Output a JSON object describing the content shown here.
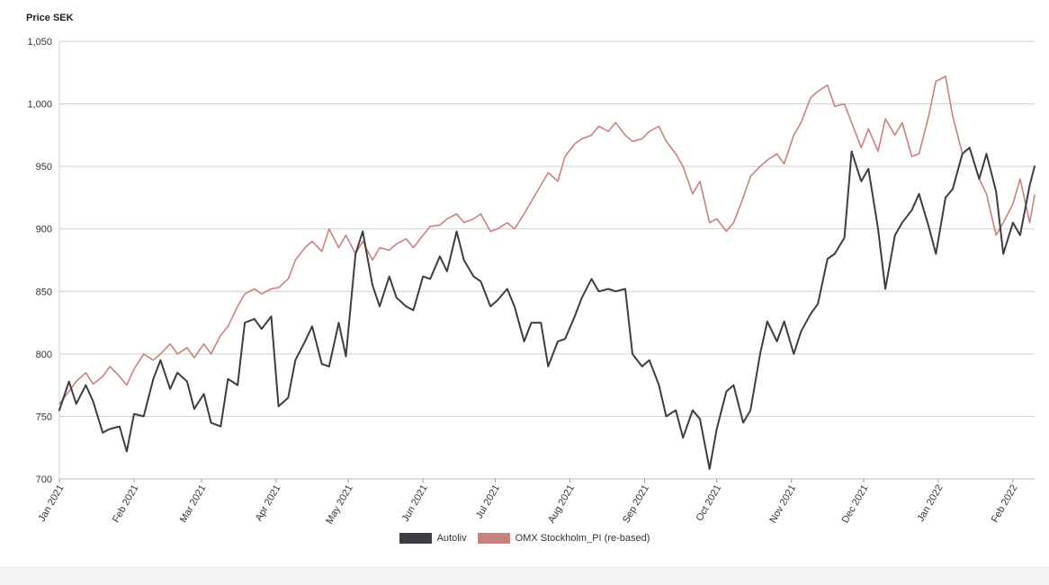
{
  "chart_data": {
    "type": "line",
    "ylabel": "Price SEK",
    "ylim": [
      700,
      1050
    ],
    "yticks": [
      700,
      750,
      800,
      850,
      900,
      950,
      1000,
      1050
    ],
    "ytick_labels": [
      "700",
      "750",
      "800",
      "850",
      "900",
      "950",
      "1,000",
      "1,050"
    ],
    "xlim": [
      "2021-01-01",
      "2022-02-10"
    ],
    "xticks": [
      "2021-01-01",
      "2021-02-01",
      "2021-03-01",
      "2021-04-01",
      "2021-05-01",
      "2021-06-01",
      "2021-07-01",
      "2021-08-01",
      "2021-09-01",
      "2021-10-01",
      "2021-11-01",
      "2021-12-01",
      "2022-01-01",
      "2022-02-01"
    ],
    "xtick_labels": [
      "Jan 2021",
      "Feb 2021",
      "Mar 2021",
      "Apr 2021",
      "May 2021",
      "Jun 2021",
      "Jul 2021",
      "Aug 2021",
      "Sep 2021",
      "Oct 2021",
      "Nov 2021",
      "Dec 2021",
      "Jan 2022",
      "Feb 2022"
    ],
    "grid": true,
    "legend_position": "bottom",
    "series": [
      {
        "name": "Autoliv",
        "color": "#3d3d42",
        "points": [
          [
            "2021-01-01",
            755
          ],
          [
            "2021-01-05",
            778
          ],
          [
            "2021-01-08",
            760
          ],
          [
            "2021-01-12",
            775
          ],
          [
            "2021-01-15",
            762
          ],
          [
            "2021-01-19",
            737
          ],
          [
            "2021-01-22",
            740
          ],
          [
            "2021-01-26",
            742
          ],
          [
            "2021-01-29",
            722
          ],
          [
            "2021-02-01",
            752
          ],
          [
            "2021-02-05",
            750
          ],
          [
            "2021-02-09",
            780
          ],
          [
            "2021-02-12",
            795
          ],
          [
            "2021-02-16",
            772
          ],
          [
            "2021-02-19",
            785
          ],
          [
            "2021-02-23",
            778
          ],
          [
            "2021-02-26",
            756
          ],
          [
            "2021-03-02",
            768
          ],
          [
            "2021-03-05",
            745
          ],
          [
            "2021-03-09",
            742
          ],
          [
            "2021-03-12",
            780
          ],
          [
            "2021-03-16",
            775
          ],
          [
            "2021-03-19",
            825
          ],
          [
            "2021-03-23",
            828
          ],
          [
            "2021-03-26",
            820
          ],
          [
            "2021-03-30",
            830
          ],
          [
            "2021-04-02",
            758
          ],
          [
            "2021-04-06",
            765
          ],
          [
            "2021-04-09",
            795
          ],
          [
            "2021-04-13",
            810
          ],
          [
            "2021-04-16",
            822
          ],
          [
            "2021-04-20",
            792
          ],
          [
            "2021-04-23",
            790
          ],
          [
            "2021-04-27",
            825
          ],
          [
            "2021-04-30",
            798
          ],
          [
            "2021-05-04",
            880
          ],
          [
            "2021-05-07",
            898
          ],
          [
            "2021-05-11",
            855
          ],
          [
            "2021-05-14",
            838
          ],
          [
            "2021-05-18",
            862
          ],
          [
            "2021-05-21",
            845
          ],
          [
            "2021-05-25",
            838
          ],
          [
            "2021-05-28",
            835
          ],
          [
            "2021-06-01",
            862
          ],
          [
            "2021-06-04",
            860
          ],
          [
            "2021-06-08",
            878
          ],
          [
            "2021-06-11",
            866
          ],
          [
            "2021-06-15",
            898
          ],
          [
            "2021-06-18",
            875
          ],
          [
            "2021-06-22",
            862
          ],
          [
            "2021-06-25",
            858
          ],
          [
            "2021-06-29",
            838
          ],
          [
            "2021-07-02",
            843
          ],
          [
            "2021-07-06",
            852
          ],
          [
            "2021-07-09",
            838
          ],
          [
            "2021-07-13",
            810
          ],
          [
            "2021-07-16",
            825
          ],
          [
            "2021-07-20",
            825
          ],
          [
            "2021-07-23",
            790
          ],
          [
            "2021-07-27",
            810
          ],
          [
            "2021-07-30",
            812
          ],
          [
            "2021-08-03",
            830
          ],
          [
            "2021-08-06",
            845
          ],
          [
            "2021-08-10",
            860
          ],
          [
            "2021-08-13",
            850
          ],
          [
            "2021-08-17",
            852
          ],
          [
            "2021-08-20",
            850
          ],
          [
            "2021-08-24",
            852
          ],
          [
            "2021-08-27",
            800
          ],
          [
            "2021-08-31",
            790
          ],
          [
            "2021-09-03",
            795
          ],
          [
            "2021-09-07",
            775
          ],
          [
            "2021-09-10",
            750
          ],
          [
            "2021-09-14",
            755
          ],
          [
            "2021-09-17",
            733
          ],
          [
            "2021-09-21",
            755
          ],
          [
            "2021-09-24",
            748
          ],
          [
            "2021-09-28",
            708
          ],
          [
            "2021-10-01",
            740
          ],
          [
            "2021-10-05",
            770
          ],
          [
            "2021-10-08",
            775
          ],
          [
            "2021-10-12",
            745
          ],
          [
            "2021-10-15",
            755
          ],
          [
            "2021-10-19",
            800
          ],
          [
            "2021-10-22",
            826
          ],
          [
            "2021-10-26",
            810
          ],
          [
            "2021-10-29",
            826
          ],
          [
            "2021-11-02",
            800
          ],
          [
            "2021-11-05",
            818
          ],
          [
            "2021-11-09",
            832
          ],
          [
            "2021-11-12",
            840
          ],
          [
            "2021-11-16",
            876
          ],
          [
            "2021-11-19",
            880
          ],
          [
            "2021-11-23",
            893
          ],
          [
            "2021-11-26",
            962
          ],
          [
            "2021-11-30",
            938
          ],
          [
            "2021-12-03",
            948
          ],
          [
            "2021-12-07",
            900
          ],
          [
            "2021-12-10",
            852
          ],
          [
            "2021-12-14",
            895
          ],
          [
            "2021-12-17",
            905
          ],
          [
            "2021-12-21",
            915
          ],
          [
            "2021-12-24",
            928
          ],
          [
            "2021-12-28",
            902
          ],
          [
            "2021-12-31",
            880
          ],
          [
            "2022-01-04",
            925
          ],
          [
            "2022-01-07",
            932
          ],
          [
            "2022-01-11",
            960
          ],
          [
            "2022-01-14",
            965
          ],
          [
            "2022-01-18",
            940
          ],
          [
            "2022-01-21",
            960
          ],
          [
            "2022-01-25",
            930
          ],
          [
            "2022-01-28",
            880
          ],
          [
            "2022-02-01",
            905
          ],
          [
            "2022-02-04",
            895
          ],
          [
            "2022-02-08",
            935
          ],
          [
            "2022-02-10",
            950
          ]
        ]
      },
      {
        "name": "OMX Stockholm_PI (re-based)",
        "color": "#c9827b",
        "points": [
          [
            "2021-01-01",
            760
          ],
          [
            "2021-01-05",
            770
          ],
          [
            "2021-01-08",
            778
          ],
          [
            "2021-01-12",
            785
          ],
          [
            "2021-01-15",
            776
          ],
          [
            "2021-01-19",
            782
          ],
          [
            "2021-01-22",
            790
          ],
          [
            "2021-01-26",
            782
          ],
          [
            "2021-01-29",
            775
          ],
          [
            "2021-02-01",
            788
          ],
          [
            "2021-02-05",
            800
          ],
          [
            "2021-02-09",
            795
          ],
          [
            "2021-02-12",
            800
          ],
          [
            "2021-02-16",
            808
          ],
          [
            "2021-02-19",
            800
          ],
          [
            "2021-02-23",
            805
          ],
          [
            "2021-02-26",
            797
          ],
          [
            "2021-03-02",
            808
          ],
          [
            "2021-03-05",
            800
          ],
          [
            "2021-03-09",
            815
          ],
          [
            "2021-03-12",
            822
          ],
          [
            "2021-03-16",
            838
          ],
          [
            "2021-03-19",
            848
          ],
          [
            "2021-03-23",
            852
          ],
          [
            "2021-03-26",
            848
          ],
          [
            "2021-03-30",
            852
          ],
          [
            "2021-04-02",
            853
          ],
          [
            "2021-04-06",
            860
          ],
          [
            "2021-04-09",
            875
          ],
          [
            "2021-04-13",
            885
          ],
          [
            "2021-04-16",
            890
          ],
          [
            "2021-04-20",
            882
          ],
          [
            "2021-04-23",
            900
          ],
          [
            "2021-04-27",
            885
          ],
          [
            "2021-04-30",
            895
          ],
          [
            "2021-05-04",
            880
          ],
          [
            "2021-05-07",
            890
          ],
          [
            "2021-05-11",
            875
          ],
          [
            "2021-05-14",
            885
          ],
          [
            "2021-05-18",
            883
          ],
          [
            "2021-05-21",
            888
          ],
          [
            "2021-05-25",
            892
          ],
          [
            "2021-05-28",
            885
          ],
          [
            "2021-06-01",
            895
          ],
          [
            "2021-06-04",
            902
          ],
          [
            "2021-06-08",
            903
          ],
          [
            "2021-06-11",
            908
          ],
          [
            "2021-06-15",
            912
          ],
          [
            "2021-06-18",
            905
          ],
          [
            "2021-06-22",
            908
          ],
          [
            "2021-06-25",
            912
          ],
          [
            "2021-06-29",
            898
          ],
          [
            "2021-07-02",
            900
          ],
          [
            "2021-07-06",
            905
          ],
          [
            "2021-07-09",
            900
          ],
          [
            "2021-07-13",
            912
          ],
          [
            "2021-07-16",
            922
          ],
          [
            "2021-07-20",
            935
          ],
          [
            "2021-07-23",
            945
          ],
          [
            "2021-07-27",
            938
          ],
          [
            "2021-07-30",
            958
          ],
          [
            "2021-08-03",
            968
          ],
          [
            "2021-08-06",
            972
          ],
          [
            "2021-08-10",
            975
          ],
          [
            "2021-08-13",
            982
          ],
          [
            "2021-08-17",
            978
          ],
          [
            "2021-08-20",
            985
          ],
          [
            "2021-08-24",
            975
          ],
          [
            "2021-08-27",
            970
          ],
          [
            "2021-08-31",
            972
          ],
          [
            "2021-09-03",
            978
          ],
          [
            "2021-09-07",
            982
          ],
          [
            "2021-09-10",
            970
          ],
          [
            "2021-09-14",
            960
          ],
          [
            "2021-09-17",
            950
          ],
          [
            "2021-09-21",
            928
          ],
          [
            "2021-09-24",
            938
          ],
          [
            "2021-09-28",
            905
          ],
          [
            "2021-10-01",
            908
          ],
          [
            "2021-10-05",
            898
          ],
          [
            "2021-10-08",
            905
          ],
          [
            "2021-10-12",
            925
          ],
          [
            "2021-10-15",
            942
          ],
          [
            "2021-10-19",
            950
          ],
          [
            "2021-10-22",
            955
          ],
          [
            "2021-10-26",
            960
          ],
          [
            "2021-10-29",
            952
          ],
          [
            "2021-11-02",
            975
          ],
          [
            "2021-11-05",
            985
          ],
          [
            "2021-11-09",
            1005
          ],
          [
            "2021-11-12",
            1010
          ],
          [
            "2021-11-16",
            1015
          ],
          [
            "2021-11-19",
            998
          ],
          [
            "2021-11-23",
            1000
          ],
          [
            "2021-11-26",
            985
          ],
          [
            "2021-11-30",
            965
          ],
          [
            "2021-12-03",
            980
          ],
          [
            "2021-12-07",
            962
          ],
          [
            "2021-12-10",
            988
          ],
          [
            "2021-12-14",
            975
          ],
          [
            "2021-12-17",
            985
          ],
          [
            "2021-12-21",
            958
          ],
          [
            "2021-12-24",
            960
          ],
          [
            "2021-12-28",
            990
          ],
          [
            "2021-12-31",
            1018
          ],
          [
            "2022-01-04",
            1022
          ],
          [
            "2022-01-07",
            990
          ],
          [
            "2022-01-11",
            960
          ],
          [
            "2022-01-14",
            965
          ],
          [
            "2022-01-18",
            940
          ],
          [
            "2022-01-21",
            928
          ],
          [
            "2022-01-25",
            895
          ],
          [
            "2022-01-28",
            905
          ],
          [
            "2022-02-01",
            920
          ],
          [
            "2022-02-04",
            940
          ],
          [
            "2022-02-08",
            905
          ],
          [
            "2022-02-10",
            927
          ]
        ]
      }
    ]
  }
}
